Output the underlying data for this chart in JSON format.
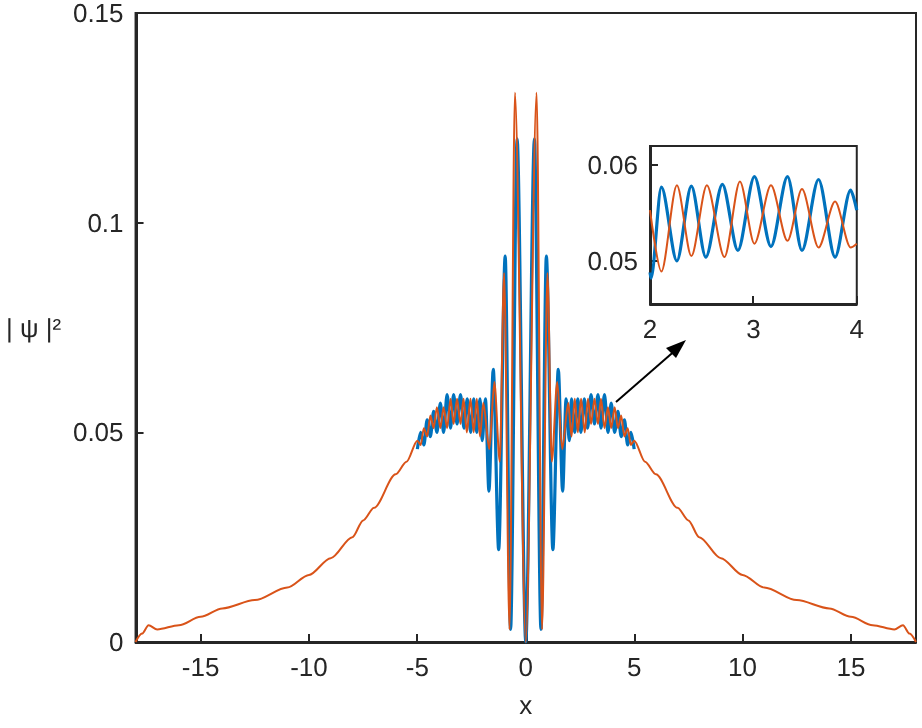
{
  "chart_data": [
    {
      "type": "line",
      "xlabel": "x",
      "ylabel": "| ψ |²",
      "xlim": [
        -18,
        18
      ],
      "xticks": [
        -15,
        -10,
        -5,
        0,
        5,
        10,
        15
      ],
      "ylim": [
        0,
        0.15
      ],
      "yticks": [
        0,
        0.05,
        0.1,
        0.15
      ],
      "series": [
        {
          "color": "#0072bd",
          "x": [
            -5,
            -4.85,
            -4.7,
            -4.55,
            -4.4,
            -4.25,
            -4.1,
            -3.94,
            -3.79,
            -3.63,
            -3.47,
            -3.33,
            -3.17,
            -3.01,
            -2.85,
            -2.7,
            -2.54,
            -2.4,
            -2.26,
            -2.11,
            -2.01,
            -1.86,
            -1.7,
            -1.5,
            -1.25,
            -0.95,
            -0.7,
            -0.4,
            0,
            0.4,
            0.7,
            0.95,
            1.25,
            1.5,
            1.7,
            1.86,
            2.01,
            2.11,
            2.26,
            2.4,
            2.54,
            2.7,
            2.85,
            3.01,
            3.17,
            3.33,
            3.47,
            3.63,
            3.79,
            3.94,
            4.1,
            4.25,
            4.4,
            4.55,
            4.7,
            4.85,
            5
          ],
          "values": [
            0.046,
            0.05,
            0.047,
            0.053,
            0.049,
            0.055,
            0.05,
            0.057,
            0.05,
            0.059,
            0.051,
            0.059,
            0.052,
            0.059,
            0.051,
            0.058,
            0.05,
            0.058,
            0.05,
            0.058,
            0.048,
            0.058,
            0.036,
            0.065,
            0.022,
            0.092,
            0.003,
            0.12,
            0,
            0.12,
            0.003,
            0.092,
            0.022,
            0.065,
            0.036,
            0.058,
            0.048,
            0.058,
            0.05,
            0.058,
            0.05,
            0.058,
            0.051,
            0.059,
            0.052,
            0.059,
            0.051,
            0.059,
            0.05,
            0.057,
            0.05,
            0.055,
            0.049,
            0.053,
            0.047,
            0.05,
            0.046
          ]
        },
        {
          "color": "#d95319",
          "x": [
            -18,
            -17.7,
            -17.4,
            -17,
            -16,
            -15,
            -14,
            -12.5,
            -11,
            -10,
            -9,
            -8,
            -7.5,
            -7,
            -6,
            -5.5,
            -5,
            -4.85,
            -4.7,
            -4.55,
            -4.4,
            -4.25,
            -4.1,
            -3.94,
            -3.79,
            -3.63,
            -3.47,
            -3.33,
            -3.17,
            -3.01,
            -2.87,
            -2.72,
            -2.55,
            -2.4,
            -2.26,
            -2.11,
            -1.96,
            -1.68,
            -1.45,
            -1.2,
            -1.0,
            -0.75,
            -0.5,
            0,
            0.5,
            0.75,
            1.0,
            1.2,
            1.45,
            1.68,
            1.96,
            2.11,
            2.26,
            2.4,
            2.55,
            2.72,
            2.87,
            3.01,
            3.17,
            3.33,
            3.47,
            3.63,
            3.79,
            3.94,
            4.1,
            4.25,
            4.4,
            4.55,
            4.7,
            4.85,
            5,
            5.5,
            6,
            7,
            7.5,
            8,
            9,
            10,
            11,
            12.5,
            14,
            15,
            16,
            17,
            17.4,
            17.7,
            18
          ],
          "values": [
            0,
            0.002,
            0.004,
            0.003,
            0.004,
            0.006,
            0.008,
            0.01,
            0.013,
            0.016,
            0.02,
            0.025,
            0.029,
            0.032,
            0.04,
            0.043,
            0.048,
            0.047,
            0.051,
            0.049,
            0.054,
            0.051,
            0.056,
            0.051,
            0.056,
            0.051,
            0.058,
            0.052,
            0.058,
            0.052,
            0.058,
            0.05,
            0.058,
            0.05,
            0.058,
            0.049,
            0.057,
            0.046,
            0.062,
            0.043,
            0.088,
            0.003,
            0.131,
            0,
            0.131,
            0.003,
            0.088,
            0.043,
            0.062,
            0.046,
            0.057,
            0.049,
            0.058,
            0.05,
            0.058,
            0.05,
            0.058,
            0.052,
            0.058,
            0.052,
            0.058,
            0.051,
            0.056,
            0.051,
            0.056,
            0.051,
            0.054,
            0.049,
            0.051,
            0.047,
            0.048,
            0.043,
            0.04,
            0.032,
            0.029,
            0.025,
            0.02,
            0.016,
            0.013,
            0.01,
            0.008,
            0.006,
            0.004,
            0.003,
            0.004,
            0.002,
            0
          ]
        }
      ]
    },
    {
      "type": "line",
      "xlim": [
        2,
        4
      ],
      "xticks": [
        2,
        3,
        4
      ],
      "ylim": [
        0.0455,
        0.062
      ],
      "yticks": [
        0.05,
        0.06
      ],
      "series": [
        {
          "color": "#0072bd",
          "x": [
            2,
            2.01,
            2.11,
            2.26,
            2.4,
            2.54,
            2.7,
            2.85,
            3.01,
            3.17,
            3.33,
            3.47,
            3.63,
            3.79,
            3.94,
            4
          ],
          "values": [
            0.0488,
            0.0482,
            0.0577,
            0.05,
            0.0578,
            0.0504,
            0.058,
            0.0511,
            0.0588,
            0.0515,
            0.0588,
            0.0511,
            0.0585,
            0.0504,
            0.0574,
            0.0553
          ]
        },
        {
          "color": "#d95319",
          "x": [
            2,
            2.11,
            2.26,
            2.4,
            2.55,
            2.72,
            2.87,
            3.01,
            3.17,
            3.33,
            3.47,
            3.63,
            3.79,
            3.94,
            4
          ],
          "values": [
            0.0553,
            0.0489,
            0.0579,
            0.0505,
            0.0579,
            0.0504,
            0.0583,
            0.0518,
            0.0579,
            0.0521,
            0.0575,
            0.0514,
            0.0562,
            0.0514,
            0.0518
          ]
        }
      ]
    }
  ]
}
